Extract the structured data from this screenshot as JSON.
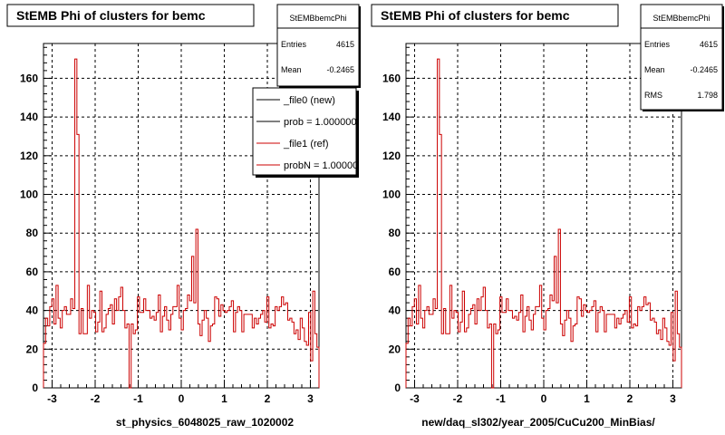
{
  "colors": {
    "background": "#ffffff",
    "frame": "#000000",
    "grid": "#000000",
    "new_hist": "#000000",
    "ref_hist": "#cc0000"
  },
  "chart_data": [
    {
      "type": "bar",
      "title": "StEMB Phi of clusters for bemc",
      "xlabel": "st_physics_6048025_raw_1020002",
      "ylabel": "",
      "xlim": [
        -3.2,
        3.2
      ],
      "ylim": [
        0,
        178
      ],
      "grid": true,
      "x_ticks": [
        -3,
        -2,
        -1,
        0,
        1,
        2,
        3
      ],
      "y_ticks": [
        0,
        20,
        40,
        60,
        80,
        100,
        120,
        140,
        160
      ],
      "stats": {
        "name": "StEMBbemcPhi",
        "rows": [
          {
            "label": "Entries",
            "value": "4615"
          },
          {
            "label": "Mean",
            "value": "-0.2465"
          }
        ]
      },
      "legend": {
        "placement": "top-right",
        "entries": [
          {
            "label": "_file0 (new)",
            "color": "#000000"
          },
          {
            "label": "prob = 1.000000",
            "color": "#000000"
          },
          {
            "label": "_file1 (ref)",
            "color": "#cc0000"
          },
          {
            "label": "probN = 1.000000",
            "color": "#cc0000"
          }
        ]
      },
      "series": [
        {
          "name": "_file1 (ref)",
          "color": "#cc0000",
          "bin_edges_start": -3.2,
          "bin_edges_end": 3.2,
          "values": [
            23,
            36,
            32,
            42,
            46,
            33,
            53,
            36,
            31,
            40,
            42,
            38,
            38,
            46,
            41,
            170,
            131,
            28,
            41,
            28,
            28,
            53,
            36,
            40,
            39,
            29,
            34,
            50,
            29,
            31,
            38,
            41,
            43,
            33,
            46,
            40,
            47,
            52,
            40,
            31,
            33,
            0,
            33,
            28,
            30,
            47,
            39,
            39,
            46,
            40,
            40,
            36,
            37,
            35,
            39,
            48,
            29,
            37,
            42,
            35,
            30,
            38,
            42,
            42,
            53,
            36,
            30,
            40,
            41,
            48,
            45,
            68,
            44,
            82,
            33,
            27,
            35,
            40,
            36,
            24,
            32,
            33,
            47,
            46,
            37,
            43,
            40,
            39,
            40,
            42,
            45,
            29,
            39,
            42,
            40,
            29,
            38,
            38,
            38,
            38,
            31,
            36,
            33,
            36,
            38,
            40,
            34,
            47,
            31,
            33,
            32,
            42,
            40,
            42,
            47,
            43,
            44,
            35,
            36,
            34,
            28,
            30,
            25,
            36,
            31,
            24,
            22,
            39,
            14,
            50,
            28,
            21
          ]
        }
      ]
    },
    {
      "type": "bar",
      "title": "StEMB Phi of clusters for bemc",
      "xlabel": "new/daq_sl302/year_2005/CuCu200_MinBias/",
      "ylabel": "",
      "xlim": [
        -3.2,
        3.2
      ],
      "ylim": [
        0,
        178
      ],
      "grid": true,
      "x_ticks": [
        -3,
        -2,
        -1,
        0,
        1,
        2,
        3
      ],
      "y_ticks": [
        0,
        20,
        40,
        60,
        80,
        100,
        120,
        140,
        160
      ],
      "stats": {
        "name": "StEMBbemcPhi",
        "rows": [
          {
            "label": "Entries",
            "value": "4615"
          },
          {
            "label": "Mean",
            "value": "-0.2465"
          },
          {
            "label": "RMS",
            "value": "1.798"
          }
        ]
      },
      "series": [
        {
          "name": "",
          "color": "#cc0000",
          "bin_edges_start": -3.2,
          "bin_edges_end": 3.2,
          "values": [
            23,
            36,
            32,
            42,
            46,
            33,
            53,
            36,
            31,
            40,
            42,
            38,
            38,
            46,
            41,
            170,
            131,
            28,
            41,
            28,
            28,
            53,
            36,
            40,
            39,
            29,
            34,
            50,
            29,
            31,
            38,
            41,
            43,
            33,
            46,
            40,
            47,
            52,
            40,
            31,
            33,
            0,
            33,
            28,
            30,
            47,
            39,
            39,
            46,
            40,
            40,
            36,
            37,
            35,
            39,
            48,
            29,
            37,
            42,
            35,
            30,
            38,
            42,
            42,
            53,
            36,
            30,
            40,
            41,
            48,
            45,
            68,
            44,
            82,
            33,
            27,
            35,
            40,
            36,
            24,
            32,
            33,
            47,
            46,
            37,
            43,
            40,
            39,
            40,
            42,
            45,
            29,
            39,
            42,
            40,
            29,
            38,
            38,
            38,
            38,
            31,
            36,
            33,
            36,
            38,
            40,
            34,
            47,
            31,
            33,
            32,
            42,
            40,
            42,
            47,
            43,
            44,
            35,
            36,
            34,
            28,
            30,
            25,
            36,
            31,
            24,
            22,
            39,
            14,
            50,
            28,
            21
          ]
        }
      ]
    }
  ]
}
